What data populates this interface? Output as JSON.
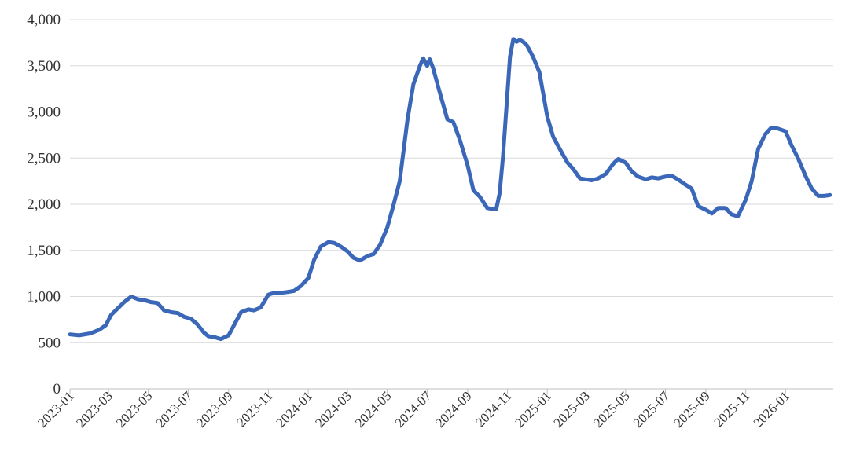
{
  "colors": {
    "line": "#3a67b8",
    "grid": "#d9d9d9",
    "axis": "#bfbfbf",
    "text": "#333333"
  },
  "chart_data": {
    "type": "line",
    "title": "",
    "xlabel": "",
    "ylabel": "",
    "ylim": [
      0,
      4000
    ],
    "yticks": [
      "0",
      "500",
      "1,000",
      "1,500",
      "2,000",
      "2,500",
      "3,000",
      "3,500",
      "4,000"
    ],
    "ytick_values": [
      0,
      500,
      1000,
      1500,
      2000,
      2500,
      3000,
      3500,
      4000
    ],
    "xlim": [
      "2023-01-01",
      "2026-03-15"
    ],
    "xticks": [
      "2023-01",
      "2023-03",
      "2023-05",
      "2023-07",
      "2023-09",
      "2023-11",
      "2024-01",
      "2024-03",
      "2024-05",
      "2024-07",
      "2024-09",
      "2024-11",
      "2025-01",
      "2025-03",
      "2025-05",
      "2025-07",
      "2025-09",
      "2025-11",
      "2026-01"
    ],
    "grid": true,
    "legend": "none",
    "series": [
      {
        "x": [
          "2023-01-01",
          "2023-01-15",
          "2023-02-01",
          "2023-02-15",
          "2023-02-25",
          "2023-03-05",
          "2023-03-15",
          "2023-03-25",
          "2023-04-05",
          "2023-04-15",
          "2023-04-25",
          "2023-05-05",
          "2023-05-15",
          "2023-05-25",
          "2023-06-05",
          "2023-06-15",
          "2023-06-25",
          "2023-07-05",
          "2023-07-15",
          "2023-07-25",
          "2023-08-01",
          "2023-08-10",
          "2023-08-20",
          "2023-09-01",
          "2023-09-10",
          "2023-09-20",
          "2023-10-01",
          "2023-10-10",
          "2023-10-20",
          "2023-11-01",
          "2023-11-10",
          "2023-11-20",
          "2023-12-01",
          "2023-12-10",
          "2023-12-20",
          "2024-01-01",
          "2024-01-10",
          "2024-01-20",
          "2024-02-01",
          "2024-02-10",
          "2024-02-20",
          "2024-03-01",
          "2024-03-10",
          "2024-03-20",
          "2024-04-01",
          "2024-04-10",
          "2024-04-20",
          "2024-05-01",
          "2024-05-10",
          "2024-05-20",
          "2024-06-01",
          "2024-06-10",
          "2024-06-20",
          "2024-06-25",
          "2024-07-01",
          "2024-07-05",
          "2024-07-10",
          "2024-07-20",
          "2024-08-01",
          "2024-08-10",
          "2024-08-20",
          "2024-09-01",
          "2024-09-10",
          "2024-09-20",
          "2024-10-01",
          "2024-10-08",
          "2024-10-15",
          "2024-10-20",
          "2024-10-25",
          "2024-11-01",
          "2024-11-05",
          "2024-11-10",
          "2024-11-15",
          "2024-11-20",
          "2024-11-25",
          "2024-12-01",
          "2024-12-10",
          "2024-12-20",
          "2025-01-01",
          "2025-01-10",
          "2025-01-20",
          "2025-02-01",
          "2025-02-10",
          "2025-02-20",
          "2025-03-01",
          "2025-03-10",
          "2025-03-20",
          "2025-04-01",
          "2025-04-10",
          "2025-04-15",
          "2025-04-20",
          "2025-05-01",
          "2025-05-10",
          "2025-05-20",
          "2025-06-01",
          "2025-06-10",
          "2025-06-20",
          "2025-07-01",
          "2025-07-10",
          "2025-07-20",
          "2025-08-01",
          "2025-08-10",
          "2025-08-20",
          "2025-09-01",
          "2025-09-10",
          "2025-09-20",
          "2025-10-01",
          "2025-10-10",
          "2025-10-20",
          "2025-11-01",
          "2025-11-10",
          "2025-11-20",
          "2025-12-01",
          "2025-12-10",
          "2025-12-20",
          "2026-01-01",
          "2026-01-10",
          "2026-01-20",
          "2026-02-01",
          "2026-02-10",
          "2026-02-20",
          "2026-03-01",
          "2026-03-10"
        ],
        "y": [
          590,
          580,
          600,
          640,
          690,
          800,
          870,
          940,
          1000,
          970,
          960,
          940,
          930,
          850,
          830,
          820,
          780,
          760,
          700,
          610,
          570,
          560,
          540,
          580,
          700,
          830,
          860,
          850,
          880,
          1020,
          1040,
          1040,
          1050,
          1060,
          1110,
          1200,
          1400,
          1540,
          1590,
          1580,
          1540,
          1490,
          1420,
          1390,
          1440,
          1460,
          1560,
          1750,
          1980,
          2250,
          2920,
          3300,
          3500,
          3580,
          3500,
          3570,
          3480,
          3220,
          2920,
          2890,
          2700,
          2420,
          2150,
          2080,
          1960,
          1950,
          1950,
          2120,
          2500,
          3200,
          3600,
          3790,
          3760,
          3780,
          3760,
          3720,
          3600,
          3430,
          2950,
          2730,
          2600,
          2450,
          2380,
          2280,
          2270,
          2260,
          2280,
          2330,
          2420,
          2460,
          2490,
          2450,
          2360,
          2300,
          2270,
          2290,
          2280,
          2300,
          2310,
          2270,
          2210,
          2170,
          1980,
          1940,
          1900,
          1960,
          1960,
          1890,
          1870,
          2050,
          2250,
          2600,
          2760,
          2830,
          2820,
          2790,
          2640,
          2500,
          2300,
          2170,
          2090,
          2090,
          2100
        ]
      }
    ]
  }
}
